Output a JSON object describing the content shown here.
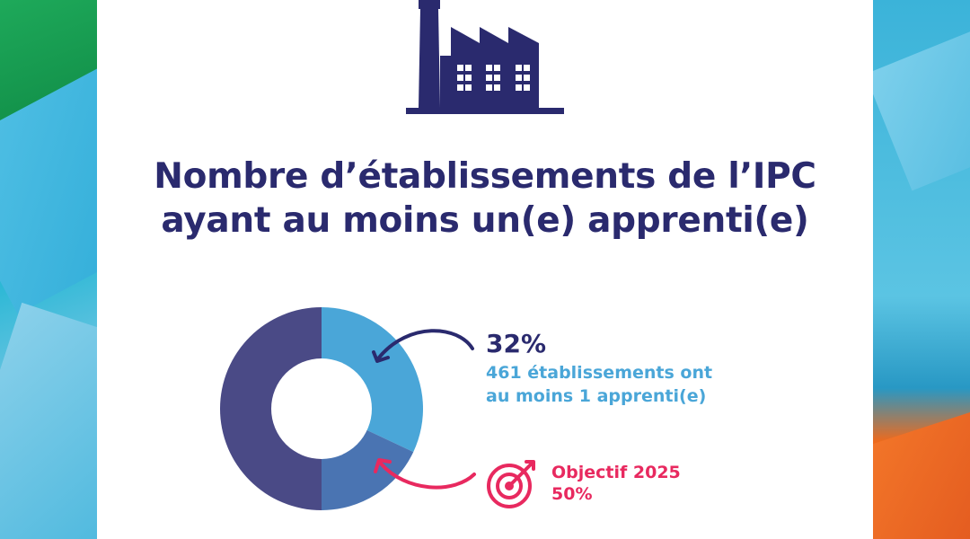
{
  "title": {
    "line1": "Nombre d’établissements de l’IPC",
    "line2": "ayant au moins un(e) apprenti(e)"
  },
  "icons": {
    "header": "factory-icon",
    "objective": "target-icon"
  },
  "colors": {
    "navy": "#2a2a6e",
    "light_blue": "#4aa6d8",
    "mid_blue": "#4a74b2",
    "dark_slice": "#4a4a86",
    "pink": "#e8295f"
  },
  "chart_data": {
    "type": "pie",
    "donut": true,
    "slices": [
      {
        "label": "461 établissements ont au moins 1 apprenti(e)",
        "value": 32,
        "color": "#4aa6d8"
      },
      {
        "label": "Objectif 2025",
        "value": 18,
        "color": "#4a74b2"
      },
      {
        "label": "",
        "value": 50,
        "color": "#4a4a86"
      }
    ],
    "annotations": {
      "current_pct": "32%",
      "current_line1": "461 établissements ont",
      "current_line2": "au moins 1 apprenti(e)",
      "objective_label": "Objectif 2025",
      "objective_pct": "50%"
    }
  }
}
